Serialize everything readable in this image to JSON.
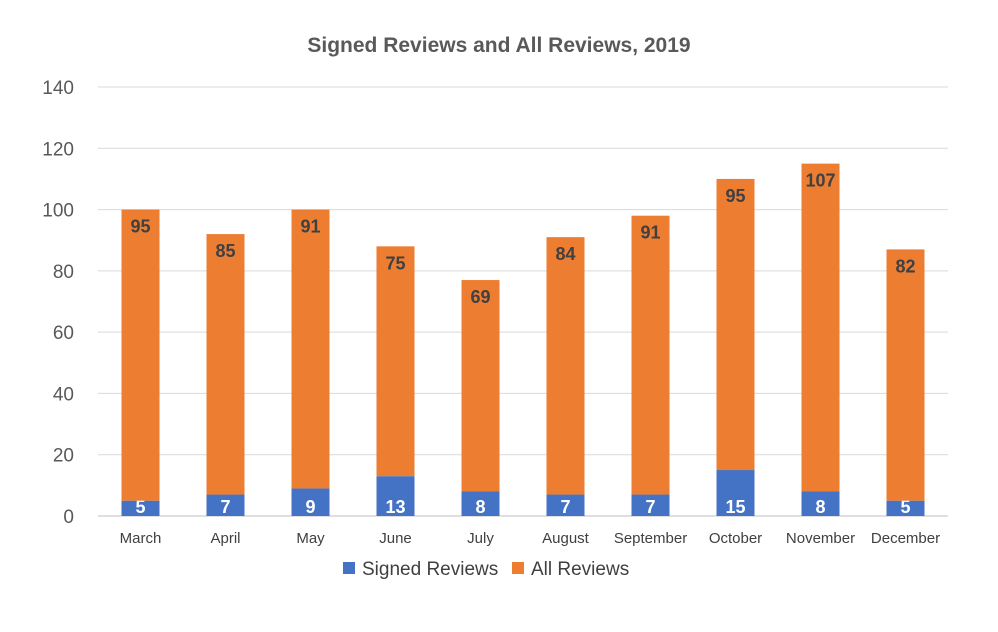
{
  "chart_data": {
    "type": "bar",
    "stacked": true,
    "title": "Signed Reviews and All Reviews, 2019",
    "xlabel": "",
    "ylabel": "",
    "ylim": [
      0,
      140
    ],
    "yticks": [
      0,
      20,
      40,
      60,
      80,
      100,
      120,
      140
    ],
    "grid": true,
    "legend_position": "bottom",
    "categories": [
      "March",
      "April",
      "May",
      "June",
      "July",
      "August",
      "September",
      "October",
      "November",
      "December"
    ],
    "series": [
      {
        "name": "Signed Reviews",
        "color": "#4472C4",
        "label_color": "#ffffff",
        "values": [
          5,
          7,
          9,
          13,
          8,
          7,
          7,
          15,
          8,
          5
        ]
      },
      {
        "name": "All Reviews",
        "color": "#ED7D31",
        "label_color": "#404040",
        "values": [
          95,
          85,
          91,
          75,
          69,
          84,
          91,
          95,
          107,
          82
        ]
      }
    ]
  }
}
